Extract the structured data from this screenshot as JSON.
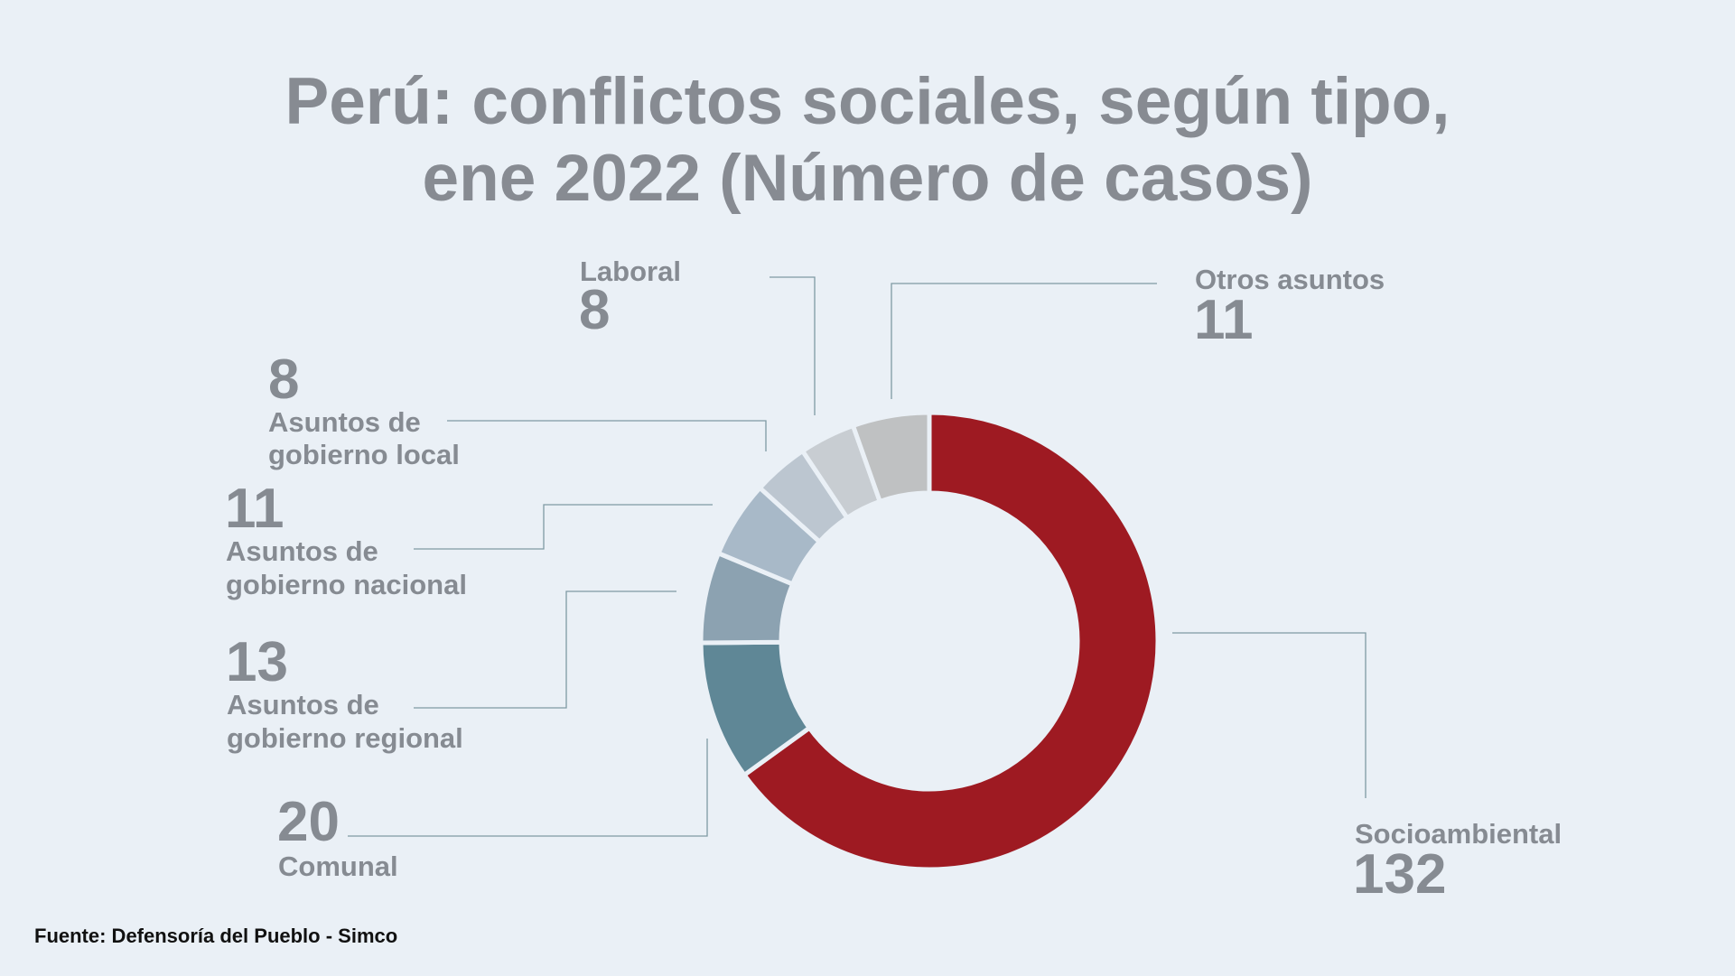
{
  "title": {
    "line1": "Perú: conflictos sociales, según tipo,",
    "line2": "ene 2022 (Número de casos)"
  },
  "source": "Fuente: Defensoría del Pueblo - Simco",
  "chart_data": {
    "type": "donut",
    "title": "Perú: conflictos sociales, según tipo, ene 2022 (Número de casos)",
    "categories": [
      "Socioambiental",
      "Comunal",
      "Asuntos de gobierno regional",
      "Asuntos de gobierno nacional",
      "Asuntos de gobierno local",
      "Laboral",
      "Otros asuntos"
    ],
    "values": [
      132,
      20,
      13,
      11,
      8,
      8,
      11
    ],
    "colors": [
      "#9e1a22",
      "#5f8796",
      "#8ca2b1",
      "#a8b9c8",
      "#bcc6d0",
      "#c8cdd2",
      "#bfc1c2"
    ],
    "labels": {
      "socio": {
        "name": "Socioambiental",
        "value": "132"
      },
      "comunal": {
        "name": "Comunal",
        "value": "20"
      },
      "regional": {
        "name1": "Asuntos de",
        "name2": "gobierno regional",
        "value": "13"
      },
      "nacional": {
        "name1": "Asuntos de",
        "name2": "gobierno nacional",
        "value": "11"
      },
      "local": {
        "name1": "Asuntos de",
        "name2": "gobierno local",
        "value": "8"
      },
      "laboral": {
        "name": "Laboral",
        "value": "8"
      },
      "otros": {
        "name": "Otros asuntos",
        "value": "11"
      }
    }
  }
}
